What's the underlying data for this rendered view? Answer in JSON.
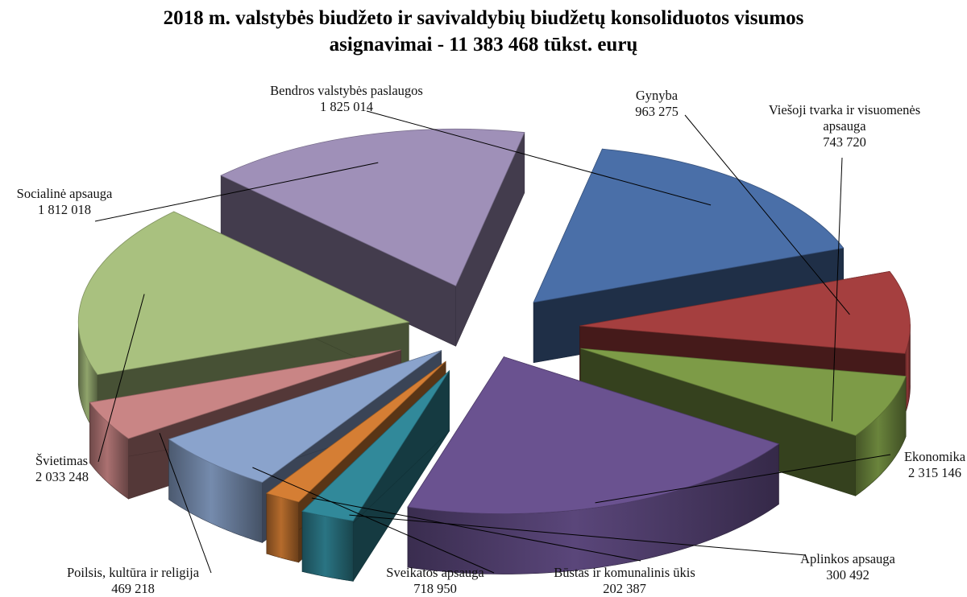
{
  "title_line1": "2018 m. valstybės biudžeto ir savivaldybių biudžetų konsoliduotos visumos",
  "title_line2": "asignavimai - 11 383 468 tūkst. eurų",
  "chart_data": {
    "type": "pie",
    "style": "3d-exploded",
    "title": "2018 m. valstybės biudžeto ir savivaldybių biudžetų konsoliduotos visumos asignavimai - 11 383 468 tūkst. eurų",
    "total": 11383468,
    "slices": [
      {
        "label_lines": [
          "Bendros valstybės paslaugos"
        ],
        "value_text": "1 825 014",
        "value": 1825014,
        "color": "#4a6fa8"
      },
      {
        "label_lines": [
          "Gynyba"
        ],
        "value_text": "963 275",
        "value": 963275,
        "color": "#a53f3f"
      },
      {
        "label_lines": [
          "Viešoji tvarka ir visuomenės",
          "apsauga"
        ],
        "value_text": "743 720",
        "value": 743720,
        "color": "#7d9b47"
      },
      {
        "label_lines": [
          "Ekonomika"
        ],
        "value_text": "2 315 146",
        "value": 2315146,
        "color": "#6a5290"
      },
      {
        "label_lines": [
          "Aplinkos apsauga"
        ],
        "value_text": "300 492",
        "value": 300492,
        "color": "#31899a"
      },
      {
        "label_lines": [
          "Būstas ir komunalinis ūkis"
        ],
        "value_text": "202 387",
        "value": 202387,
        "color": "#d57e34"
      },
      {
        "label_lines": [
          "Sveikatos apsauga"
        ],
        "value_text": "718 950",
        "value": 718950,
        "color": "#8aa3cc"
      },
      {
        "label_lines": [
          "Poilsis, kultūra ir religija"
        ],
        "value_text": "469 218",
        "value": 469218,
        "color": "#c98585"
      },
      {
        "label_lines": [
          "Švietimas"
        ],
        "value_text": "2 033 248",
        "value": 2033248,
        "color": "#a9c17f"
      },
      {
        "label_lines": [
          "Socialinė apsauga"
        ],
        "value_text": "1 812 018",
        "value": 1812018,
        "color": "#9f90b8"
      }
    ]
  }
}
